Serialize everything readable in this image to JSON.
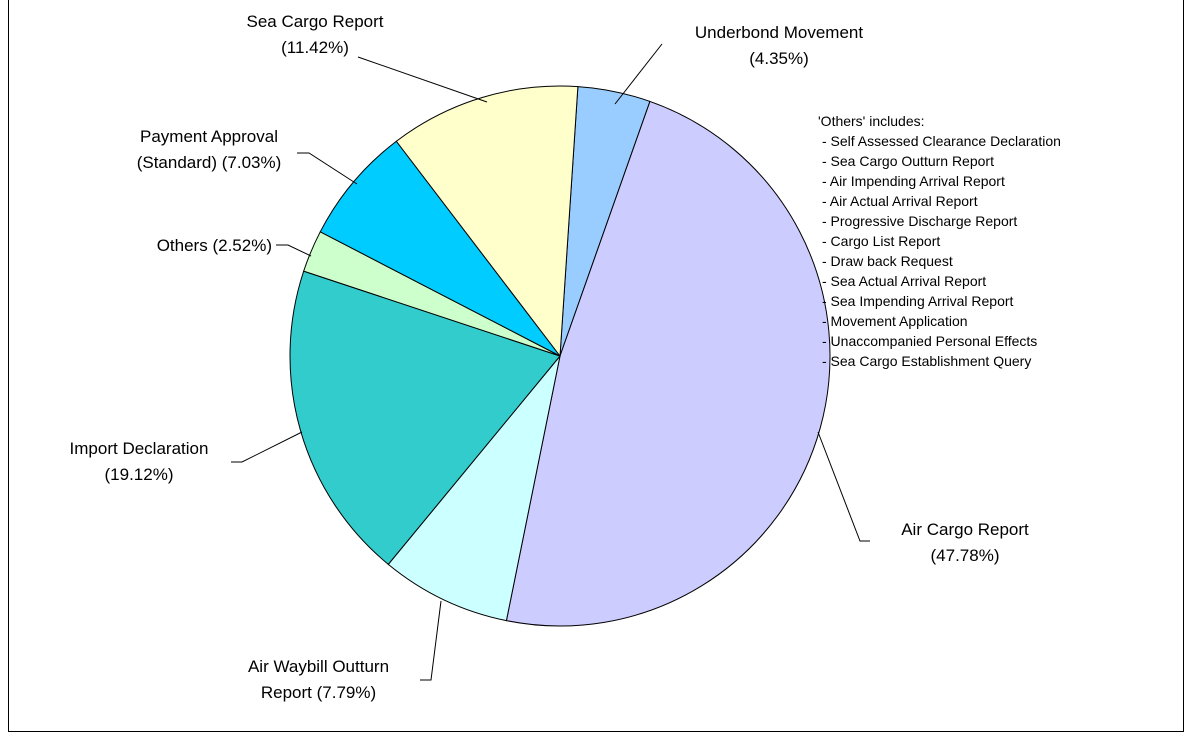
{
  "chart_data": {
    "type": "pie",
    "categories": [
      "Underbond Movement",
      "Air Cargo Report",
      "Air Waybill Outturn Report",
      "Import Declaration",
      "Others",
      "Payment Approval (Standard)",
      "Sea Cargo Report"
    ],
    "values": [
      4.35,
      47.78,
      7.79,
      19.12,
      2.52,
      7.03,
      11.42
    ],
    "value_labels": [
      "(4.35%)",
      "(47.78%)",
      "(7.79%)",
      "(19.12%)",
      "(2.52%)",
      "(7.03%)",
      "(11.42%)"
    ],
    "colors": [
      "#99ccff",
      "#ccccff",
      "#ccffff",
      "#33cccc",
      "#ccffcc",
      "#00ccff",
      "#ffffcc"
    ],
    "note": {
      "title": "'Others' includes:",
      "items": [
        "- Self Assessed Clearance Declaration",
        "- Sea Cargo Outturn Report",
        "- Air Impending Arrival Report",
        "- Air Actual Arrival Report",
        "- Progressive Discharge Report",
        "- Cargo List Report",
        "- Draw back Request",
        "- Sea Actual Arrival Report",
        "- Sea Impending Arrival Report",
        "- Movement Application",
        "- Unaccompanied Personal Effects",
        "- Sea Cargo Establishment Query"
      ]
    }
  }
}
